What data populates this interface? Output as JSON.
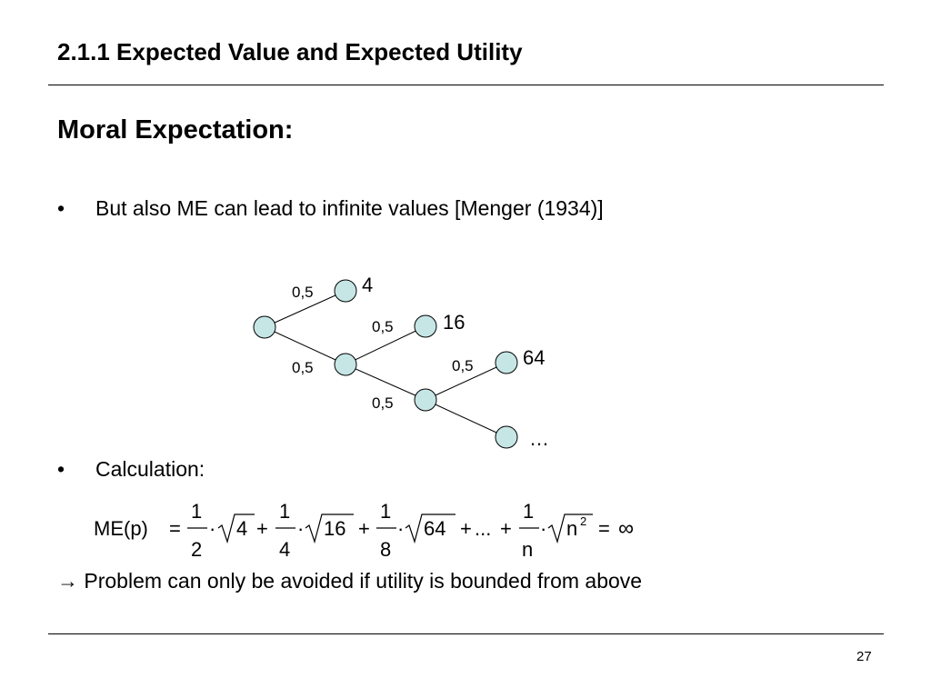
{
  "header": {
    "title": "2.1.1 Expected Value and Expected Utility"
  },
  "section": {
    "title": "Moral Expectation:"
  },
  "bullets": [
    {
      "marker": "•",
      "text": "But also ME can lead to infinite values [Menger (1934)]"
    },
    {
      "marker": "•",
      "text": "Calculation:"
    }
  ],
  "tree": {
    "colors": {
      "node_fill": "#c6e6e6",
      "node_stroke": "#000000",
      "edge": "#000000"
    },
    "probability_label": "0,5",
    "outcomes": [
      "4",
      "16",
      "64",
      "…"
    ]
  },
  "formula": {
    "lhs": "ME(p)",
    "equals": "=",
    "dot": "·",
    "plus": "+",
    "ellipsis": "...",
    "terms": [
      {
        "numerator": "1",
        "denominator": "2",
        "radicand": "4"
      },
      {
        "numerator": "1",
        "denominator": "4",
        "radicand": "16"
      },
      {
        "numerator": "1",
        "denominator": "8",
        "radicand": "64"
      },
      {
        "numerator": "1",
        "denominator": "n",
        "radicand": "n",
        "radicand_exponent": "2"
      }
    ],
    "result": "∞"
  },
  "conclusion": {
    "text": "→ Problem can only be avoided if utility is bounded from above"
  },
  "footer": {
    "page_number": "27"
  }
}
